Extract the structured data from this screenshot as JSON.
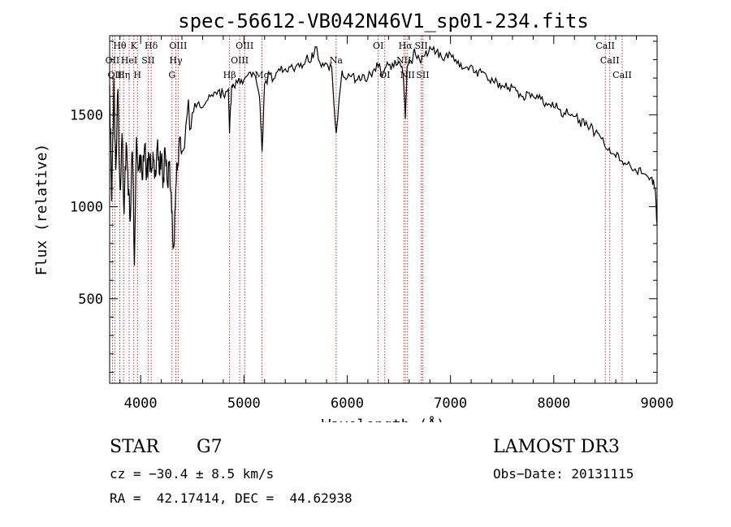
{
  "chart_data": {
    "type": "line",
    "title": "spec-56612-VB042N46V1_sp01-234.fits",
    "xlabel": "Wavelength (Å)",
    "ylabel": "Flux (relative)",
    "xlim": [
      3700,
      9000
    ],
    "ylim": [
      40,
      1930
    ],
    "x_ticks": [
      4000,
      5000,
      6000,
      7000,
      8000,
      9000
    ],
    "y_ticks": [
      500,
      1000,
      1500
    ],
    "series": [
      {
        "name": "spectrum",
        "x": [
          3700,
          3720,
          3740,
          3760,
          3780,
          3800,
          3820,
          3840,
          3860,
          3880,
          3900,
          3920,
          3940,
          3960,
          3980,
          4000,
          4020,
          4040,
          4060,
          4080,
          4100,
          4120,
          4140,
          4160,
          4180,
          4200,
          4220,
          4240,
          4260,
          4280,
          4300,
          4320,
          4340,
          4360,
          4380,
          4400,
          4450,
          4500,
          4550,
          4600,
          4650,
          4700,
          4750,
          4800,
          4850,
          4861,
          4880,
          4900,
          4950,
          5000,
          5050,
          5100,
          5150,
          5175,
          5200,
          5250,
          5300,
          5350,
          5400,
          5450,
          5500,
          5550,
          5600,
          5650,
          5690,
          5750,
          5800,
          5850,
          5893,
          5950,
          6000,
          6050,
          6100,
          6150,
          6200,
          6250,
          6300,
          6350,
          6400,
          6450,
          6500,
          6540,
          6563,
          6580,
          6620,
          6650,
          6700,
          6750,
          6800,
          6850,
          6900,
          6950,
          7000,
          7050,
          7100,
          7150,
          7200,
          7250,
          7300,
          7350,
          7400,
          7450,
          7500,
          7550,
          7600,
          7650,
          7700,
          7750,
          7800,
          7850,
          7900,
          7950,
          8000,
          8050,
          8100,
          8150,
          8200,
          8250,
          8300,
          8350,
          8400,
          8450,
          8500,
          8550,
          8600,
          8650,
          8700,
          8750,
          8800,
          8850,
          8900,
          8950,
          8980,
          9000
        ],
        "y": [
          1660,
          1030,
          1700,
          1200,
          1640,
          1100,
          1400,
          960,
          1350,
          1060,
          920,
          1300,
          680,
          1380,
          1200,
          1280,
          1150,
          1340,
          1190,
          1280,
          1210,
          1300,
          1200,
          1330,
          1180,
          1260,
          1160,
          1280,
          1120,
          1250,
          970,
          780,
          1100,
          1230,
          1380,
          1300,
          1500,
          1510,
          1560,
          1540,
          1580,
          1600,
          1630,
          1610,
          1640,
          1400,
          1650,
          1660,
          1700,
          1690,
          1730,
          1720,
          1600,
          1300,
          1670,
          1720,
          1700,
          1740,
          1750,
          1760,
          1760,
          1780,
          1800,
          1790,
          1870,
          1760,
          1780,
          1760,
          1400,
          1740,
          1700,
          1720,
          1690,
          1720,
          1700,
          1740,
          1760,
          1730,
          1770,
          1760,
          1790,
          1720,
          1480,
          1760,
          1790,
          1860,
          1800,
          1820,
          1870,
          1830,
          1840,
          1820,
          1830,
          1800,
          1780,
          1760,
          1770,
          1740,
          1730,
          1710,
          1700,
          1680,
          1660,
          1640,
          1650,
          1630,
          1600,
          1620,
          1600,
          1590,
          1560,
          1560,
          1540,
          1530,
          1510,
          1500,
          1490,
          1470,
          1440,
          1430,
          1400,
          1380,
          1320,
          1290,
          1270,
          1250,
          1230,
          1210,
          1190,
          1180,
          1170,
          1160,
          1100,
          900
        ]
      }
    ],
    "lines": [
      {
        "x": 3727,
        "label": "OII",
        "row": 2
      },
      {
        "x": 3750,
        "label": "OII",
        "row": 3
      },
      {
        "x": 3798,
        "label": "Hθ",
        "row": 1
      },
      {
        "x": 3835,
        "label": "Hη",
        "row": 3
      },
      {
        "x": 3889,
        "label": "HeI",
        "row": 2
      },
      {
        "x": 3934,
        "label": "K",
        "row": 1
      },
      {
        "x": 3969,
        "label": "H",
        "row": 3
      },
      {
        "x": 4072,
        "label": "SII",
        "row": 2
      },
      {
        "x": 4102,
        "label": "Hδ",
        "row": 1
      },
      {
        "x": 4304,
        "label": "G",
        "row": 3
      },
      {
        "x": 4341,
        "label": "Hγ",
        "row": 2
      },
      {
        "x": 4363,
        "label": "OIII",
        "row": 1
      },
      {
        "x": 4861,
        "label": "Hβ",
        "row": 3
      },
      {
        "x": 4959,
        "label": "OIII",
        "row": 2
      },
      {
        "x": 5007,
        "label": "OIII",
        "row": 1
      },
      {
        "x": 5175,
        "label": "Mg",
        "row": 3
      },
      {
        "x": 5893,
        "label": "Na",
        "row": 2
      },
      {
        "x": 6300,
        "label": "OI",
        "row": 1
      },
      {
        "x": 6364,
        "label": "OI",
        "row": 3
      },
      {
        "x": 6548,
        "label": "NII",
        "row": 2
      },
      {
        "x": 6563,
        "label": "Hα",
        "row": 1
      },
      {
        "x": 6584,
        "label": "NII",
        "row": 3
      },
      {
        "x": 6717,
        "label": "SII",
        "row": 1
      },
      {
        "x": 6731,
        "label": "SII",
        "row": 3
      },
      {
        "x": 8498,
        "label": "CaII",
        "row": 1
      },
      {
        "x": 8542,
        "label": "CaII",
        "row": 2
      },
      {
        "x": 8662,
        "label": "CaII",
        "row": 3
      }
    ]
  },
  "info": {
    "object_class": "STAR",
    "subclass": "G7",
    "survey": "LAMOST DR3",
    "cz": "cz = −30.4 ± 8.5 km/s",
    "obs_date": "Obs−Date: 20131115",
    "coords": "RA =  42.17414, DEC =  44.62938"
  }
}
